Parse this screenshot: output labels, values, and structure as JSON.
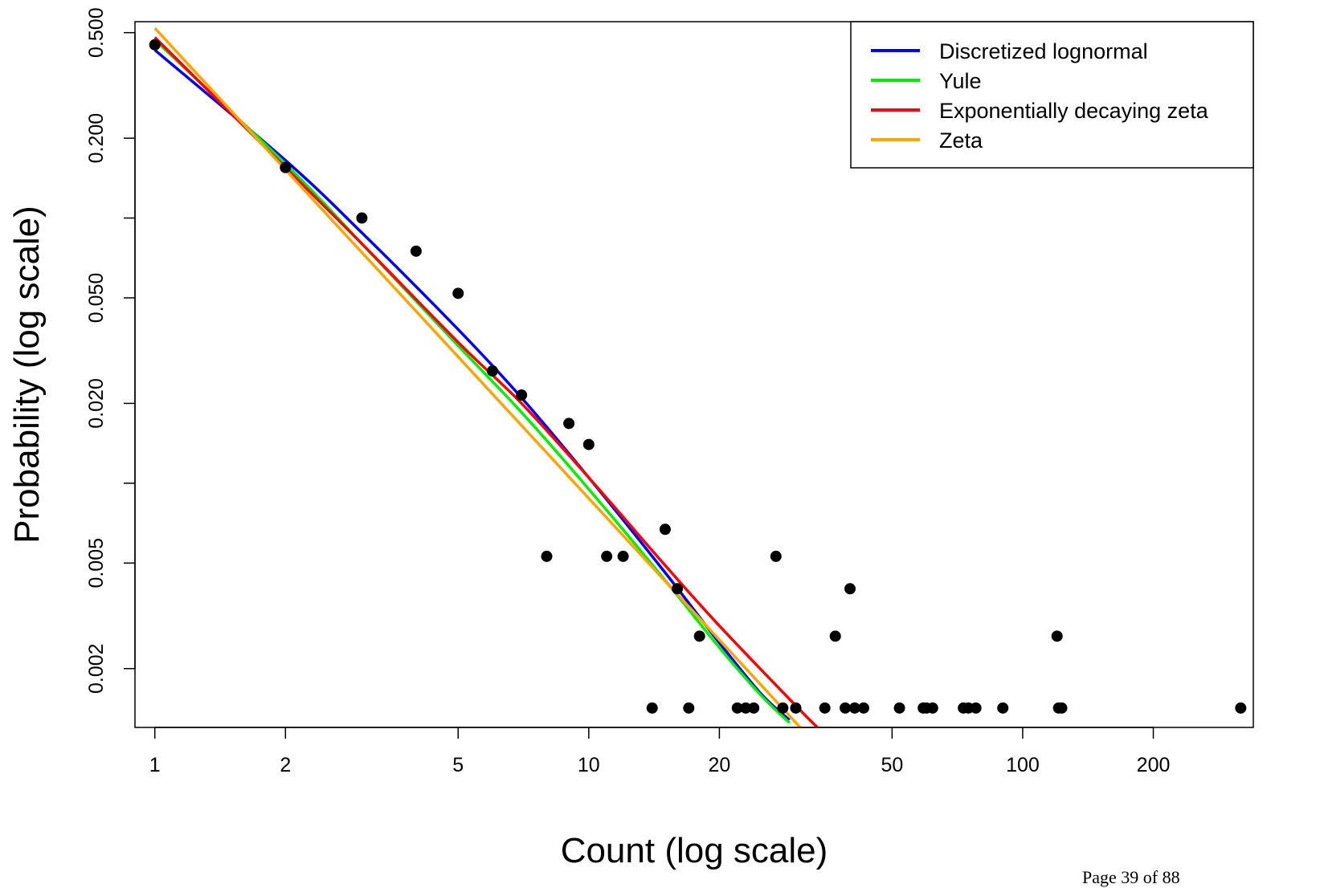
{
  "page": {
    "number_label": "Page 39 of 88"
  },
  "chart_data": {
    "type": "scatter",
    "title": "",
    "xlabel": "Count (log scale)",
    "ylabel": "Probability (log scale)",
    "x_scale": "log",
    "y_scale": "log",
    "xlim": [
      0.9,
      340
    ],
    "ylim": [
      0.0012,
      0.55
    ],
    "x_ticks": [
      1,
      2,
      5,
      10,
      20,
      50,
      100,
      200
    ],
    "x_tick_labels": [
      "1",
      "2",
      "5",
      "10",
      "20",
      "50",
      "100",
      "200"
    ],
    "y_ticks": [
      0.002,
      0.005,
      0.02,
      0.05,
      0.2,
      0.5
    ],
    "y_tick_labels": [
      "0.002",
      "0.005",
      "0.020",
      "0.050",
      "0.200",
      "0.500"
    ],
    "y_minor_ticks": [
      0.01,
      0.1
    ],
    "grid": false,
    "legend_position": "top-right",
    "points": {
      "color": "#000000",
      "x": [
        1,
        2,
        3,
        4,
        5,
        6,
        7,
        8,
        9,
        10,
        11,
        12,
        14,
        15,
        16,
        17,
        18,
        22,
        23,
        24,
        27,
        28,
        30,
        35,
        37,
        39,
        40,
        41,
        43,
        52,
        59,
        60,
        62,
        73,
        75,
        78,
        90,
        120,
        121,
        123,
        318
      ],
      "y": [
        0.45,
        0.155,
        0.1,
        0.075,
        0.052,
        0.0265,
        0.0215,
        0.0053,
        0.0168,
        0.014,
        0.0053,
        0.0053,
        0.00142,
        0.0067,
        0.004,
        0.00142,
        0.00265,
        0.00142,
        0.00142,
        0.00142,
        0.0053,
        0.00142,
        0.00142,
        0.00142,
        0.00265,
        0.00142,
        0.004,
        0.00142,
        0.00142,
        0.00142,
        0.00142,
        0.00142,
        0.00142,
        0.00142,
        0.00142,
        0.00142,
        0.00142,
        0.00265,
        0.00142,
        0.00142,
        0.00142
      ]
    },
    "series": [
      {
        "name": "Discretized lognormal",
        "color": "#0000ff",
        "x": [
          1,
          2,
          3,
          5,
          7,
          10,
          15,
          20,
          25,
          29
        ],
        "y": [
          0.43,
          0.165,
          0.088,
          0.038,
          0.021,
          0.0105,
          0.0046,
          0.0025,
          0.0016,
          0.00128
        ]
      },
      {
        "name": "Yule",
        "color": "#00ee00",
        "x": [
          1,
          2,
          3,
          5,
          7,
          10,
          15,
          20,
          25,
          29
        ],
        "y": [
          0.47,
          0.16,
          0.08,
          0.033,
          0.0185,
          0.0095,
          0.0043,
          0.0024,
          0.00158,
          0.00125
        ]
      },
      {
        "name": "Exponentially decaying zeta",
        "color": "#ff0000",
        "x": [
          1,
          2,
          3,
          5,
          7,
          10,
          15,
          20,
          30,
          34
        ],
        "y": [
          0.48,
          0.155,
          0.08,
          0.034,
          0.02,
          0.0105,
          0.0049,
          0.0029,
          0.00145,
          0.00118
        ]
      },
      {
        "name": "Zeta",
        "color": "#ffa500",
        "x": [
          1,
          31
        ],
        "y": [
          0.52,
          0.00118
        ]
      }
    ]
  }
}
